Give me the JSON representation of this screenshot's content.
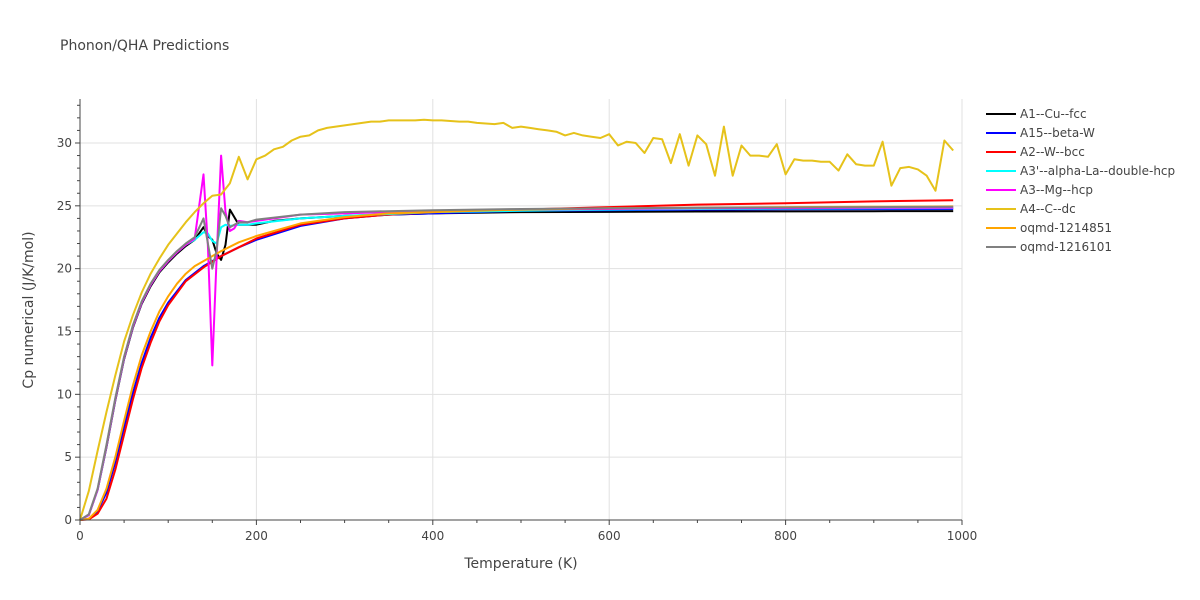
{
  "chart_data": {
    "type": "line",
    "title": "Phonon/QHA Predictions",
    "xlabel": "Temperature (K)",
    "ylabel": "Cp numerical (J/K/mol)",
    "xlim": [
      0,
      1000
    ],
    "ylim": [
      0,
      33.5
    ],
    "x_ticks": [
      0,
      200,
      400,
      600,
      800,
      1000
    ],
    "y_ticks": [
      0,
      5,
      10,
      15,
      20,
      25,
      30
    ],
    "grid": true,
    "legend_position": "top-right",
    "series": [
      {
        "name": "A1--Cu--fcc",
        "color": "#000000",
        "x": [
          0,
          10,
          20,
          30,
          40,
          50,
          60,
          70,
          80,
          90,
          100,
          110,
          120,
          130,
          140,
          145,
          150,
          155,
          160,
          165,
          170,
          175,
          180,
          190,
          200,
          220,
          250,
          300,
          350,
          400,
          450,
          500,
          600,
          700,
          800,
          900,
          990
        ],
        "y": [
          0,
          0.4,
          2.4,
          5.8,
          9.5,
          12.8,
          15.3,
          17.2,
          18.6,
          19.7,
          20.5,
          21.2,
          21.8,
          22.3,
          23.3,
          22.6,
          22.3,
          21.2,
          20.7,
          21.9,
          24.7,
          24.1,
          23.5,
          23.5,
          23.5,
          23.8,
          24.0,
          24.2,
          24.3,
          24.4,
          24.45,
          24.5,
          24.52,
          24.55,
          24.56,
          24.57,
          24.58
        ]
      },
      {
        "name": "A15--beta-W",
        "color": "#0000ff",
        "x": [
          0,
          10,
          20,
          30,
          40,
          50,
          60,
          70,
          80,
          90,
          100,
          120,
          140,
          160,
          180,
          200,
          250,
          300,
          350,
          400,
          450,
          500,
          600,
          700,
          800,
          900,
          990
        ],
        "y": [
          0,
          0.1,
          0.7,
          2.2,
          4.6,
          7.4,
          10.1,
          12.5,
          14.5,
          16.1,
          17.3,
          19.1,
          20.2,
          21.0,
          21.7,
          22.3,
          23.4,
          24.0,
          24.3,
          24.4,
          24.5,
          24.6,
          24.65,
          24.7,
          24.72,
          24.74,
          24.75
        ]
      },
      {
        "name": "A2--W--bcc",
        "color": "#ff0000",
        "x": [
          0,
          10,
          20,
          30,
          40,
          50,
          60,
          70,
          80,
          90,
          100,
          120,
          140,
          160,
          180,
          200,
          250,
          300,
          350,
          400,
          450,
          500,
          600,
          700,
          800,
          900,
          990
        ],
        "y": [
          0,
          0.05,
          0.5,
          1.7,
          4.0,
          6.8,
          9.6,
          12.1,
          14.1,
          15.8,
          17.1,
          19.0,
          20.1,
          21.0,
          21.7,
          22.4,
          23.5,
          24.0,
          24.3,
          24.5,
          24.6,
          24.7,
          24.9,
          25.1,
          25.2,
          25.35,
          25.45
        ]
      },
      {
        "name": "A3'--alpha-La--double-hcp",
        "color": "#00ffff",
        "x": [
          0,
          10,
          20,
          30,
          40,
          50,
          60,
          70,
          80,
          90,
          100,
          110,
          120,
          130,
          140,
          145,
          150,
          155,
          160,
          165,
          170,
          180,
          190,
          200,
          250,
          300,
          400,
          500,
          600,
          700,
          800,
          900,
          990
        ],
        "y": [
          0,
          0.4,
          2.4,
          5.9,
          9.6,
          12.9,
          15.4,
          17.3,
          18.7,
          19.8,
          20.6,
          21.3,
          21.9,
          22.3,
          22.9,
          22.8,
          22.2,
          22.0,
          23.3,
          23.5,
          23.4,
          23.5,
          23.5,
          23.6,
          24.0,
          24.2,
          24.5,
          24.6,
          24.7,
          24.75,
          24.78,
          24.8,
          24.82
        ]
      },
      {
        "name": "A3--Mg--hcp",
        "color": "#ff00ff",
        "x": [
          0,
          10,
          20,
          30,
          40,
          50,
          60,
          70,
          80,
          90,
          100,
          110,
          120,
          130,
          140,
          145,
          150,
          155,
          160,
          165,
          170,
          175,
          180,
          190,
          200,
          250,
          300,
          400,
          500,
          600,
          700,
          800,
          900,
          990
        ],
        "y": [
          0,
          0.4,
          2.4,
          5.9,
          9.6,
          12.9,
          15.4,
          17.3,
          18.7,
          19.8,
          20.6,
          21.3,
          21.9,
          22.4,
          27.5,
          21.8,
          12.3,
          21.0,
          29.0,
          24.5,
          23.0,
          23.2,
          23.8,
          23.7,
          23.8,
          24.3,
          24.4,
          24.6,
          24.7,
          24.75,
          24.8,
          24.82,
          24.84,
          24.85
        ]
      },
      {
        "name": "A4--C--dc",
        "color": "#e6c21a",
        "x": [
          0,
          10,
          20,
          30,
          40,
          50,
          60,
          70,
          80,
          90,
          100,
          110,
          120,
          130,
          140,
          150,
          160,
          170,
          180,
          190,
          200,
          210,
          220,
          230,
          240,
          250,
          260,
          270,
          280,
          290,
          300,
          310,
          320,
          330,
          340,
          350,
          360,
          370,
          380,
          390,
          400,
          410,
          420,
          430,
          440,
          450,
          460,
          470,
          480,
          490,
          500,
          510,
          520,
          530,
          540,
          550,
          560,
          570,
          580,
          590,
          600,
          610,
          620,
          630,
          640,
          650,
          660,
          670,
          680,
          690,
          700,
          710,
          720,
          730,
          740,
          750,
          760,
          770,
          780,
          790,
          800,
          810,
          820,
          830,
          840,
          850,
          860,
          870,
          880,
          890,
          900,
          910,
          920,
          930,
          940,
          950,
          960,
          970,
          980,
          990
        ],
        "y": [
          0,
          2.3,
          5.5,
          8.6,
          11.5,
          14.2,
          16.3,
          18.1,
          19.6,
          20.8,
          21.9,
          22.8,
          23.7,
          24.5,
          25.2,
          25.8,
          25.9,
          26.8,
          28.9,
          27.1,
          28.7,
          29.0,
          29.5,
          29.7,
          30.2,
          30.5,
          30.6,
          31.0,
          31.2,
          31.3,
          31.4,
          31.5,
          31.6,
          31.7,
          31.7,
          31.8,
          31.8,
          31.8,
          31.8,
          31.85,
          31.8,
          31.8,
          31.75,
          31.7,
          31.7,
          31.6,
          31.55,
          31.5,
          31.6,
          31.2,
          31.3,
          31.2,
          31.1,
          31.0,
          30.9,
          30.6,
          30.8,
          30.6,
          30.5,
          30.4,
          30.7,
          29.8,
          30.1,
          30.0,
          29.2,
          30.4,
          30.3,
          28.4,
          30.7,
          28.2,
          30.6,
          29.9,
          27.4,
          31.3,
          27.4,
          29.8,
          29.0,
          29.0,
          28.9,
          29.9,
          27.5,
          28.7,
          28.6,
          28.6,
          28.5,
          28.5,
          27.8,
          29.1,
          28.3,
          28.2,
          28.2,
          30.1,
          26.6,
          28.0,
          28.1,
          27.9,
          27.4,
          26.2,
          30.2,
          29.4
        ]
      },
      {
        "name": "oqmd-1214851",
        "color": "#ffa500",
        "x": [
          0,
          10,
          20,
          30,
          40,
          50,
          60,
          70,
          80,
          90,
          100,
          110,
          120,
          130,
          140,
          150,
          160,
          180,
          200,
          250,
          300,
          350,
          400,
          450,
          500,
          600,
          700,
          800,
          900,
          990
        ],
        "y": [
          0,
          0.1,
          0.8,
          2.5,
          5.0,
          7.9,
          10.7,
          13.1,
          15.0,
          16.6,
          17.8,
          18.8,
          19.6,
          20.2,
          20.6,
          21.0,
          21.4,
          22.1,
          22.6,
          23.6,
          24.1,
          24.4,
          24.5,
          24.6,
          24.7,
          24.8,
          24.85,
          24.9,
          24.92,
          24.95
        ]
      },
      {
        "name": "oqmd-1216101",
        "color": "#808080",
        "x": [
          0,
          10,
          20,
          30,
          40,
          50,
          60,
          70,
          80,
          90,
          100,
          110,
          120,
          130,
          140,
          145,
          150,
          155,
          160,
          165,
          170,
          180,
          190,
          200,
          250,
          300,
          400,
          500,
          600,
          700,
          800,
          900,
          990
        ],
        "y": [
          0,
          0.45,
          2.5,
          6.0,
          9.7,
          13.0,
          15.5,
          17.4,
          18.8,
          19.9,
          20.7,
          21.4,
          22.0,
          22.5,
          24.0,
          22.0,
          20.0,
          21.5,
          24.8,
          24.2,
          23.3,
          23.7,
          23.7,
          23.9,
          24.3,
          24.5,
          24.65,
          24.75,
          24.8,
          24.85,
          24.87,
          24.9,
          24.92
        ]
      }
    ]
  }
}
